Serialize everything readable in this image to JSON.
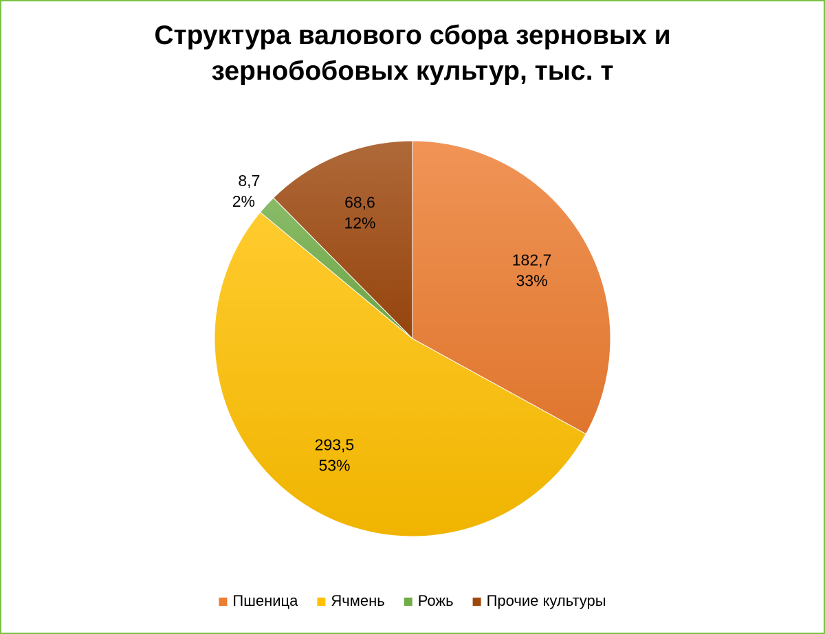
{
  "chart_data": {
    "type": "pie",
    "title_lines": [
      "Структура валового сбора зерновых и",
      "зернобобовых культур, тыс. т"
    ],
    "legend_position": "bottom",
    "slices": [
      {
        "name": "Пшеница",
        "value": 182.7,
        "value_label": "182,7",
        "percent_label": "33%",
        "color": "#ED7D31"
      },
      {
        "name": "Ячмень",
        "value": 293.5,
        "value_label": "293,5",
        "percent_label": "53%",
        "color": "#FFC000"
      },
      {
        "name": "Рожь",
        "value": 8.7,
        "value_label": "8,7",
        "percent_label": "2%",
        "color": "#70AD47"
      },
      {
        "name": "Прочие культуры",
        "value": 68.6,
        "value_label": "68,6",
        "percent_label": "12%",
        "color": "#9E480E"
      }
    ]
  },
  "colors": {
    "frame_border": "#7ac143"
  }
}
